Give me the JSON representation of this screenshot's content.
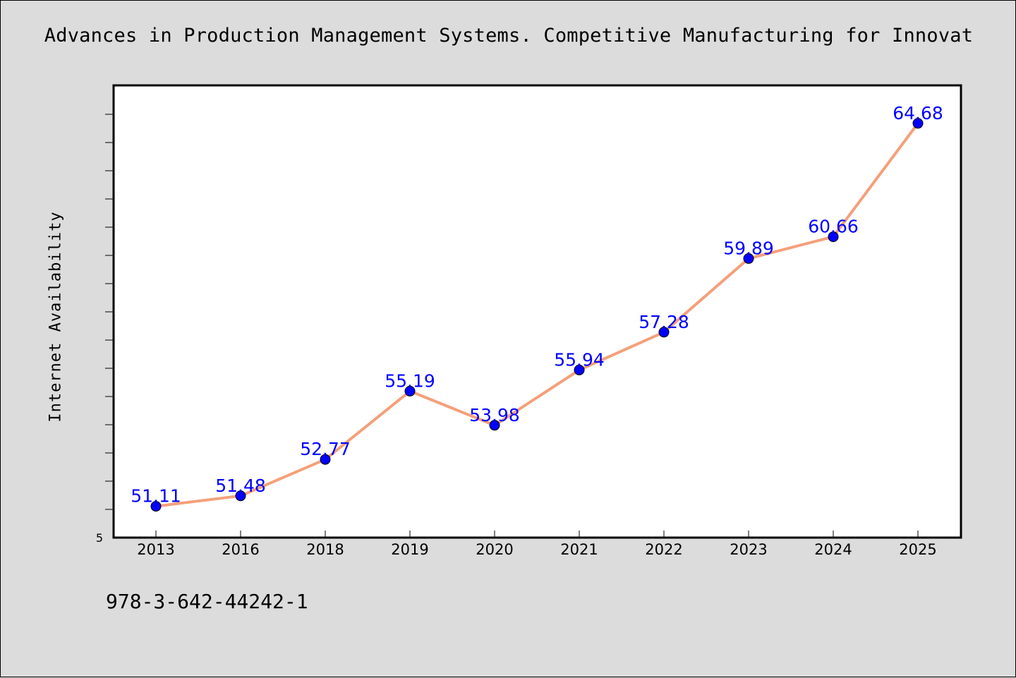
{
  "title": "Advances in Production Management Systems. Competitive Manufacturing for Innovat",
  "footer_text": "978-3-642-44242-1",
  "colors": {
    "background": "#dcdcdc",
    "plot_background": "#ffffff",
    "line": "#f4a07a",
    "marker": "#0000ff",
    "labels": "#0000ff"
  },
  "chart_data": {
    "type": "line",
    "title": "Advances in Production Management Systems. Competitive Manufacturing for Innovat",
    "xlabel": "",
    "ylabel": "Internet Availability",
    "categories": [
      "2013",
      "2016",
      "2018",
      "2019",
      "2020",
      "2021",
      "2022",
      "2023",
      "2024",
      "2025"
    ],
    "values": [
      51.11,
      51.48,
      52.77,
      55.19,
      53.98,
      55.94,
      57.28,
      59.89,
      60.66,
      64.68
    ],
    "data_labels": [
      "51.11",
      "51.48",
      "52.77",
      "55.19",
      "53.98",
      "55.94",
      "57.28",
      "59.89",
      "60.66",
      "64.68"
    ],
    "y_tick_label": "5",
    "ylim": [
      50.0,
      68.0
    ],
    "y_tick_step": 1.0,
    "grid": false,
    "legend": "none",
    "marker": "circle"
  }
}
